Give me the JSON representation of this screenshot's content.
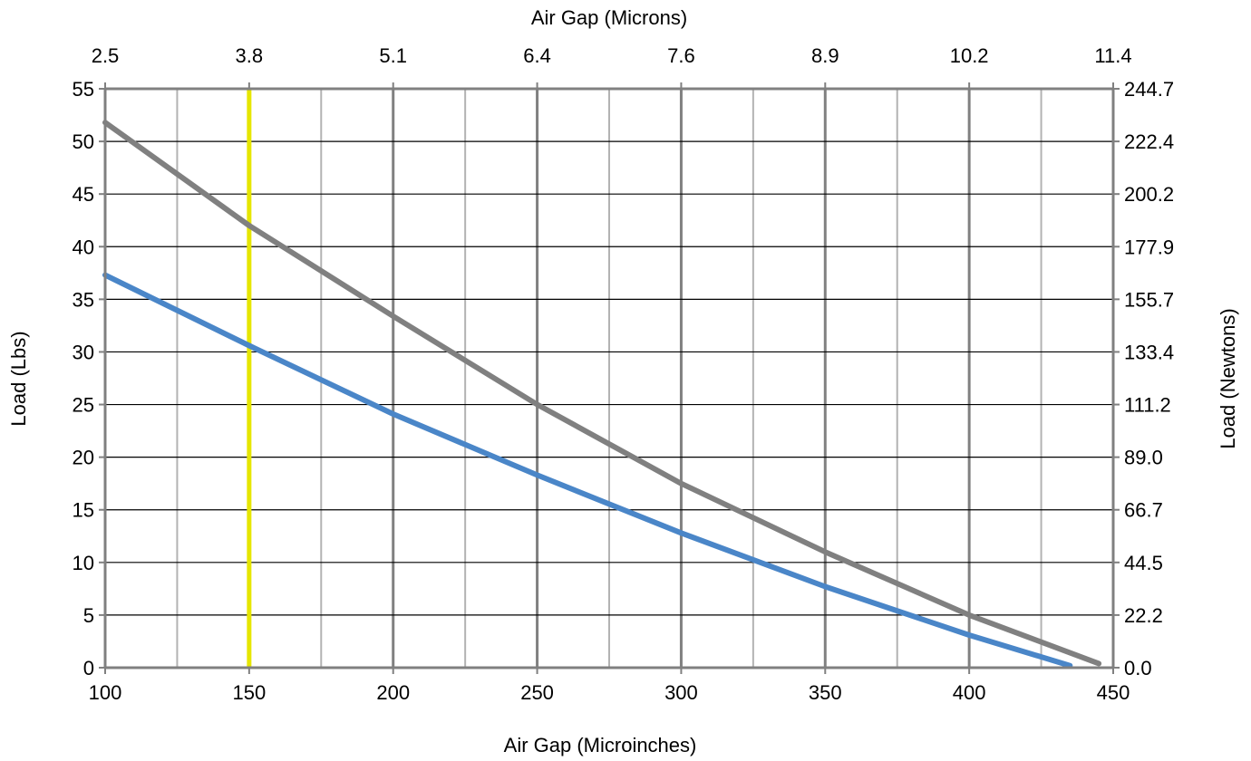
{
  "chart_data": {
    "type": "line",
    "title": "",
    "xlabel": "Air Gap (Microinches)",
    "x2label": "Air Gap (Microns)",
    "ylabel": "Load (Lbs)",
    "y2label": "Load (Newtons)",
    "xlim": [
      100,
      450
    ],
    "ylim": [
      0,
      55
    ],
    "grid": true,
    "x_ticks": [
      "100",
      "150",
      "200",
      "250",
      "300",
      "350",
      "400",
      "450"
    ],
    "x_tick_values": [
      100,
      150,
      200,
      250,
      300,
      350,
      400,
      450
    ],
    "x2_ticks": [
      "2.5",
      "3.8",
      "5.1",
      "6.4",
      "7.6",
      "8.9",
      "10.2",
      "11.4"
    ],
    "y_ticks": [
      "0",
      "5",
      "10",
      "15",
      "20",
      "25",
      "30",
      "35",
      "40",
      "45",
      "50",
      "55"
    ],
    "y_tick_values": [
      0,
      5,
      10,
      15,
      20,
      25,
      30,
      35,
      40,
      45,
      50,
      55
    ],
    "y2_ticks": [
      "0.0",
      "22.2",
      "44.5",
      "66.7",
      "89.0",
      "111.2",
      "133.4",
      "155.7",
      "177.9",
      "200.2",
      "222.4",
      "244.7"
    ],
    "minor_x_gridlines": [
      125,
      175,
      225,
      275,
      325,
      375,
      425
    ],
    "reference_line": {
      "x": 150,
      "color": "#e6e600"
    },
    "series": [
      {
        "color": "#808080",
        "x": [
          100,
          150,
          200,
          250,
          300,
          350,
          400,
          445
        ],
        "y": [
          51.8,
          42.0,
          33.4,
          25.0,
          17.5,
          11.0,
          5.0,
          0.4
        ]
      },
      {
        "color": "#4a86c8",
        "x": [
          100,
          150,
          200,
          250,
          300,
          350,
          400,
          435
        ],
        "y": [
          37.3,
          30.6,
          24.1,
          18.3,
          12.8,
          7.7,
          3.1,
          0.2
        ]
      }
    ],
    "colors": {
      "major_grid": "#808080",
      "minor_grid": "#b3b3b3",
      "h_grid": "#000000"
    }
  }
}
